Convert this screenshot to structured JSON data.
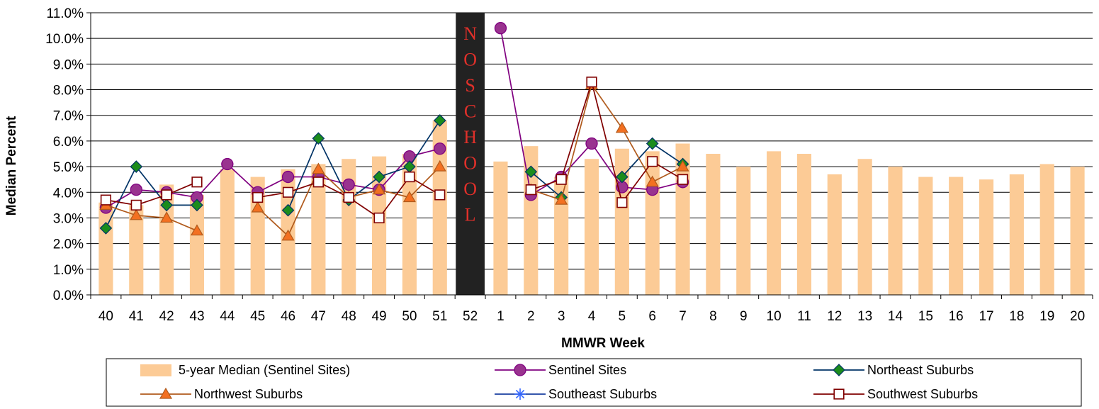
{
  "chart_data": {
    "type": "bar+line",
    "xlabel": "MMWR Week",
    "ylabel": "Median Percent",
    "ylim": [
      0,
      11
    ],
    "y_ticks": [
      "0.0%",
      "1.0%",
      "2.0%",
      "3.0%",
      "4.0%",
      "5.0%",
      "6.0%",
      "7.0%",
      "8.0%",
      "9.0%",
      "10.0%",
      "11.0%"
    ],
    "categories": [
      "40",
      "41",
      "42",
      "43",
      "44",
      "45",
      "46",
      "47",
      "48",
      "49",
      "50",
      "51",
      "52",
      "1",
      "2",
      "3",
      "4",
      "5",
      "6",
      "7",
      "8",
      "9",
      "10",
      "11",
      "12",
      "13",
      "14",
      "15",
      "16",
      "17",
      "18",
      "19",
      "20"
    ],
    "annotation": {
      "category": "52",
      "text": [
        "N",
        "O",
        "S",
        "C",
        "H",
        "O",
        "O",
        "L"
      ],
      "fill": "#222222",
      "text_color": "#e0302a"
    },
    "grid": "horizontal",
    "legend_position": "bottom",
    "series": [
      {
        "name": "5-year Median (Sentinel Sites)",
        "type": "bar",
        "color": "#fccb96",
        "values": [
          3.6,
          3.5,
          4.3,
          3.9,
          4.9,
          4.6,
          4.9,
          5.1,
          5.3,
          5.4,
          5.5,
          6.8,
          null,
          5.2,
          5.8,
          4.6,
          5.3,
          5.7,
          5.6,
          5.9,
          5.5,
          5.0,
          5.6,
          5.5,
          4.7,
          5.3,
          5.0,
          4.6,
          4.6,
          4.5,
          4.7,
          5.1,
          5.0
        ]
      },
      {
        "name": "Sentinel Sites",
        "type": "line",
        "color": "#800080",
        "marker": "circle",
        "marker_fill": "#99338f",
        "values": [
          3.4,
          4.1,
          4.0,
          3.8,
          5.1,
          4.0,
          4.6,
          4.6,
          4.3,
          4.1,
          5.4,
          5.7,
          null,
          10.4,
          3.9,
          4.6,
          5.9,
          4.2,
          4.1,
          4.4,
          null,
          null,
          null,
          null,
          null,
          null,
          null,
          null,
          null,
          null,
          null,
          null,
          null
        ]
      },
      {
        "name": "Northeast Suburbs",
        "type": "line",
        "color": "#003366",
        "marker": "diamond",
        "marker_fill": "#1c8c1c",
        "values": [
          2.6,
          5.0,
          3.5,
          3.5,
          null,
          null,
          3.3,
          6.1,
          3.7,
          4.6,
          5.0,
          6.8,
          null,
          null,
          4.8,
          3.8,
          null,
          4.6,
          5.9,
          5.1,
          null,
          null,
          null,
          null,
          null,
          null,
          null,
          null,
          null,
          null,
          null,
          null,
          null
        ]
      },
      {
        "name": "Northwest Suburbs",
        "type": "line",
        "color": "#b05a1c",
        "marker": "triangle",
        "marker_fill": "#f37021",
        "values": [
          3.5,
          3.1,
          3.0,
          2.5,
          null,
          3.4,
          2.3,
          4.9,
          3.8,
          4.1,
          3.8,
          5.0,
          null,
          null,
          4.1,
          3.7,
          8.2,
          6.5,
          4.4,
          5.0,
          null,
          null,
          null,
          null,
          null,
          null,
          null,
          null,
          null,
          null,
          null,
          null,
          null
        ]
      },
      {
        "name": "Southeast Suburbs",
        "type": "line",
        "color": "#1a3fa0",
        "marker": "star",
        "marker_fill": "#3366ff",
        "values": [
          null,
          null,
          null,
          null,
          null,
          null,
          null,
          null,
          null,
          null,
          null,
          null,
          null,
          null,
          null,
          null,
          null,
          null,
          null,
          null,
          null,
          null,
          null,
          null,
          null,
          null,
          null,
          null,
          null,
          null,
          null,
          null,
          null
        ]
      },
      {
        "name": "Southwest Suburbs",
        "type": "line",
        "color": "#800000",
        "marker": "square",
        "marker_fill": "#ffffff",
        "values": [
          3.7,
          3.5,
          3.9,
          4.4,
          null,
          3.8,
          4.0,
          4.4,
          3.8,
          3.0,
          4.6,
          3.9,
          null,
          null,
          4.1,
          4.5,
          8.3,
          3.6,
          5.2,
          4.5,
          null,
          null,
          null,
          null,
          null,
          null,
          null,
          null,
          null,
          null,
          null,
          null,
          null
        ]
      }
    ]
  }
}
